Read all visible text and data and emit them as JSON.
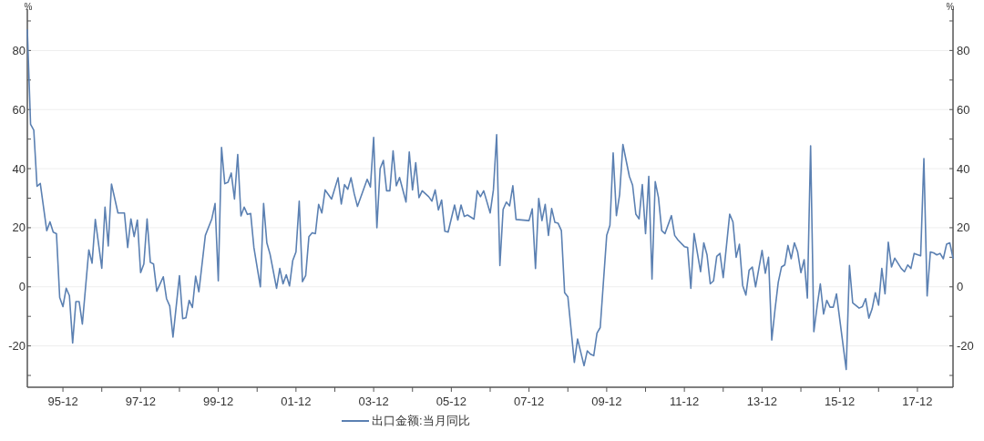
{
  "chart_data": {
    "type": "line",
    "ylabel": "%",
    "y2label": "%",
    "legend": "bottom",
    "grid": "y",
    "line_style": "solid",
    "marker": "none",
    "xlim": [
      "1995-01",
      "2018-11"
    ],
    "ylim": [
      -34,
      94
    ],
    "y2lim": [
      -34,
      94
    ],
    "xticks": [
      {
        "value": "1995-12",
        "label": "95-12"
      },
      {
        "value": "1996-12",
        "label": null
      },
      {
        "value": "1997-12",
        "label": "97-12"
      },
      {
        "value": "1998-12",
        "label": null
      },
      {
        "value": "1999-12",
        "label": "99-12"
      },
      {
        "value": "2000-12",
        "label": null
      },
      {
        "value": "2001-12",
        "label": "01-12"
      },
      {
        "value": "2002-12",
        "label": null
      },
      {
        "value": "2003-12",
        "label": "03-12"
      },
      {
        "value": "2004-12",
        "label": null
      },
      {
        "value": "2005-12",
        "label": "05-12"
      },
      {
        "value": "2006-12",
        "label": null
      },
      {
        "value": "2007-12",
        "label": "07-12"
      },
      {
        "value": "2008-12",
        "label": null
      },
      {
        "value": "2009-12",
        "label": "09-12"
      },
      {
        "value": "2010-12",
        "label": null
      },
      {
        "value": "2011-12",
        "label": "11-12"
      },
      {
        "value": "2012-12",
        "label": null
      },
      {
        "value": "2013-12",
        "label": "13-12"
      },
      {
        "value": "2014-12",
        "label": null
      },
      {
        "value": "2015-12",
        "label": "15-12"
      },
      {
        "value": "2016-12",
        "label": null
      },
      {
        "value": "2017-12",
        "label": "17-12"
      }
    ],
    "yticks": [
      {
        "value": -30,
        "label": null
      },
      -20,
      {
        "value": -10,
        "label": null
      },
      0,
      {
        "value": 10,
        "label": null
      },
      20,
      {
        "value": 30,
        "label": null
      },
      40,
      {
        "value": 50,
        "label": null
      },
      60,
      {
        "value": 70,
        "label": null
      },
      80,
      {
        "value": 90,
        "label": null
      }
    ],
    "y2ticks": [
      {
        "value": -30,
        "label": null
      },
      -20,
      {
        "value": -10,
        "label": null
      },
      0,
      {
        "value": 10,
        "label": null
      },
      20,
      {
        "value": 30,
        "label": null
      },
      40,
      {
        "value": 50,
        "label": null
      },
      60,
      {
        "value": 70,
        "label": null
      },
      80,
      {
        "value": 90,
        "label": null
      }
    ],
    "series": [
      {
        "name": "出口金额:当月同比",
        "color": "#5b80b2",
        "x": [
          "1995-01",
          "1995-02",
          "1995-03",
          "1995-04",
          "1995-05",
          "1995-07",
          "1995-08",
          "1995-09",
          "1995-10",
          "1995-11",
          "1995-12",
          "1996-01",
          "1996-02",
          "1996-03",
          "1996-04",
          "1996-05",
          "1996-06",
          "1996-08",
          "1996-09",
          "1996-10",
          "1996-12",
          "1997-01",
          "1997-02",
          "1997-03",
          "1997-05",
          "1997-07",
          "1997-08",
          "1997-09",
          "1997-10",
          "1997-11",
          "1997-12",
          "1998-01",
          "1998-02",
          "1998-03",
          "1998-04",
          "1998-05",
          "1998-07",
          "1998-08",
          "1998-09",
          "1998-10",
          "1998-12",
          "1999-01",
          "1999-02",
          "1999-03",
          "1999-04",
          "1999-05",
          "1999-06",
          "1999-08",
          "1999-10",
          "1999-11",
          "1999-12",
          "2000-01",
          "2000-02",
          "2000-03",
          "2000-04",
          "2000-05",
          "2000-06",
          "2000-07",
          "2000-08",
          "2000-09",
          "2000-10",
          "2000-11",
          "2001-01",
          "2001-02",
          "2001-03",
          "2001-04",
          "2001-06",
          "2001-07",
          "2001-08",
          "2001-09",
          "2001-10",
          "2001-11",
          "2001-12",
          "2002-01",
          "2002-02",
          "2002-03",
          "2002-04",
          "2002-05",
          "2002-06",
          "2002-07",
          "2002-08",
          "2002-09",
          "2002-11",
          "2003-01",
          "2003-02",
          "2003-03",
          "2003-04",
          "2003-05",
          "2003-06",
          "2003-07",
          "2003-10",
          "2003-11",
          "2003-12",
          "2004-01",
          "2004-02",
          "2004-03",
          "2004-04",
          "2004-05",
          "2004-06",
          "2004-07",
          "2004-08",
          "2004-10",
          "2004-11",
          "2004-12",
          "2005-01",
          "2005-02",
          "2005-03",
          "2005-05",
          "2005-06",
          "2005-07",
          "2005-08",
          "2005-09",
          "2005-10",
          "2005-11",
          "2006-01",
          "2006-02",
          "2006-03",
          "2006-04",
          "2006-05",
          "2006-07",
          "2006-08",
          "2006-09",
          "2006-10",
          "2006-12",
          "2007-01",
          "2007-02",
          "2007-03",
          "2007-04",
          "2007-05",
          "2007-06",
          "2007-07",
          "2007-08",
          "2007-12",
          "2008-01",
          "2008-02",
          "2008-03",
          "2008-04",
          "2008-05",
          "2008-06",
          "2008-07",
          "2008-08",
          "2008-09",
          "2008-10",
          "2008-11",
          "2008-12",
          "2009-02",
          "2009-03",
          "2009-05",
          "2009-06",
          "2009-07",
          "2009-08",
          "2009-09",
          "2009-10",
          "2009-12",
          "2010-01",
          "2010-02",
          "2010-03",
          "2010-04",
          "2010-05",
          "2010-07",
          "2010-08",
          "2010-09",
          "2010-10",
          "2010-11",
          "2010-12",
          "2011-01",
          "2011-02",
          "2011-03",
          "2011-04",
          "2011-05",
          "2011-06",
          "2011-08",
          "2011-09",
          "2011-10",
          "2011-12",
          "2012-01",
          "2012-02",
          "2012-03",
          "2012-05",
          "2012-06",
          "2012-07",
          "2012-08",
          "2012-09",
          "2012-10",
          "2012-11",
          "2012-12",
          "2013-02",
          "2013-03",
          "2013-04",
          "2013-05",
          "2013-06",
          "2013-07",
          "2013-08",
          "2013-09",
          "2013-10",
          "2013-12",
          "2014-01",
          "2014-02",
          "2014-03",
          "2014-04",
          "2014-05",
          "2014-06",
          "2014-07",
          "2014-08",
          "2014-09",
          "2014-10",
          "2014-11",
          "2014-12",
          "2015-01",
          "2015-02",
          "2015-03",
          "2015-04",
          "2015-05",
          "2015-06",
          "2015-07",
          "2015-08",
          "2015-09",
          "2015-10",
          "2015-11",
          "2016-02",
          "2016-03",
          "2016-04",
          "2016-06",
          "2016-07",
          "2016-08",
          "2016-09",
          "2016-10",
          "2016-11",
          "2016-12",
          "2017-01",
          "2017-02",
          "2017-03",
          "2017-04",
          "2017-05",
          "2017-07",
          "2017-08",
          "2017-09",
          "2017-10",
          "2017-11",
          "2018-01",
          "2018-02",
          "2018-03",
          "2018-04",
          "2018-05",
          "2018-06",
          "2018-07",
          "2018-08",
          "2018-09",
          "2018-10",
          "2018-11"
        ],
        "values": [
          87,
          55,
          53,
          34,
          35,
          19,
          22,
          18.5,
          18,
          -3.6,
          -6.7,
          -0.5,
          -3,
          -19,
          -5,
          -5,
          -12.6,
          12.5,
          8,
          22.8,
          6.3,
          27,
          13.8,
          34.8,
          25,
          25,
          13.3,
          23,
          17,
          22.6,
          4.8,
          7.7,
          23,
          8.3,
          7.7,
          -1.5,
          3.4,
          -4,
          -6.5,
          -17,
          3.8,
          -10.8,
          -10.5,
          -4.6,
          -7,
          3.6,
          -1.7,
          17.4,
          23,
          28.2,
          2,
          47.2,
          34.9,
          35.4,
          38.5,
          29.7,
          44.8,
          24,
          27,
          24.5,
          24.8,
          13.3,
          0,
          28.2,
          14.9,
          11,
          -0.5,
          6.2,
          1,
          4.1,
          0.3,
          8.9,
          11.8,
          29,
          1.7,
          3.8,
          17,
          18.3,
          18,
          27.9,
          25,
          32.8,
          29.7,
          36.9,
          28,
          34.6,
          33,
          36.9,
          31.5,
          27.2,
          36.4,
          33.8,
          50.6,
          20,
          40,
          42.8,
          32.5,
          32.5,
          46,
          34.2,
          37,
          28.7,
          45.6,
          32.8,
          42,
          30.2,
          32.5,
          30.5,
          29,
          32.8,
          26,
          29.4,
          18.8,
          18.5,
          27.7,
          22.6,
          27.7,
          23.8,
          24.3,
          22.9,
          32.5,
          30.5,
          32.5,
          25,
          32.8,
          51.5,
          7.2,
          26.2,
          28.7,
          27.4,
          34.2,
          22.8,
          22.4,
          26.4,
          6.2,
          29.9,
          22.4,
          27.9,
          17.4,
          26.5,
          21.8,
          21.5,
          19,
          -2,
          -3.4,
          -25.6,
          -17.7,
          -26.7,
          -21.7,
          -22.8,
          -23.3,
          -15.7,
          -13.8,
          17.4,
          20.8,
          45.3,
          24.1,
          31.3,
          48.2,
          37.4,
          34.4,
          24.6,
          23,
          34.6,
          18,
          37.4,
          2.6,
          35.6,
          30.2,
          19,
          18,
          24.1,
          17.4,
          15.9,
          13.6,
          13.3,
          -0.5,
          18,
          5.1,
          14.9,
          10.8,
          1,
          2,
          10.3,
          11.3,
          3.1,
          24.6,
          22,
          10,
          14.4,
          0.5,
          -2.8,
          5.6,
          6.7,
          0,
          12.3,
          4.6,
          10,
          -18,
          -7.7,
          1.5,
          6.7,
          7.4,
          14,
          9.5,
          14.9,
          11.8,
          4.8,
          9.2,
          -3.8,
          47.7,
          -15.2,
          -6.7,
          1,
          -9.2,
          -4.6,
          -6.9,
          -6.9,
          -2.4,
          -28,
          7.2,
          -5.4,
          -7.2,
          -6.7,
          -4,
          -10.6,
          -7.5,
          -2,
          -6.2,
          6.2,
          -2.4,
          15.1,
          6.7,
          9.7,
          6.2,
          5.1,
          7.4,
          6.2,
          11.3,
          10.5,
          43.4,
          -3.1,
          11.8,
          11.5,
          10.8,
          11.3,
          9.5,
          14.4,
          14.9,
          9.7
        ]
      }
    ]
  }
}
